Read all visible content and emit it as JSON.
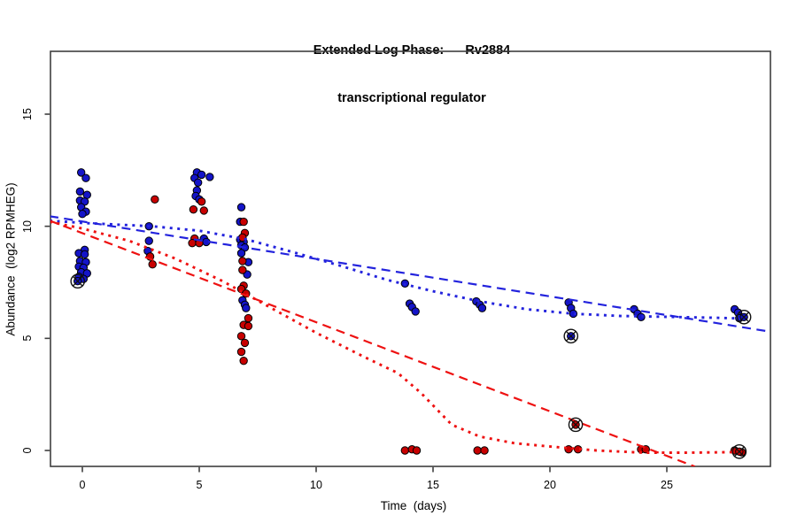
{
  "chart_data": {
    "type": "scatter",
    "title": "Extended Log Phase:      Rv2884",
    "subtitle": "transcriptional regulator",
    "xlabel": "Time  (days)",
    "ylabel": "Abundance  (log2 RPMHEG)",
    "x_ticks": [
      0,
      5,
      10,
      15,
      20,
      25
    ],
    "y_ticks": [
      0,
      5,
      10,
      15
    ],
    "xlim": [
      -1.4,
      29.5
    ],
    "ylim": [
      -0.75,
      17.8
    ],
    "grid": false,
    "legend": "none",
    "colors": {
      "blue_point": "#1414c8",
      "red_point": "#c80000",
      "blue_line": "#2323dd",
      "red_line": "#ee1111",
      "point_edge": "#000000",
      "flag_ring": "#111111",
      "box": "#3f3f3f",
      "text": "#000000",
      "background": "#ffffff"
    },
    "series": [
      {
        "name": "blue-points",
        "kind": "points",
        "marker": "dot",
        "color": "#1414c8",
        "data": [
          [
            -0.05,
            12.4
          ],
          [
            0.15,
            12.15
          ],
          [
            -0.1,
            11.55
          ],
          [
            0.2,
            11.4
          ],
          [
            -0.1,
            11.15
          ],
          [
            0.1,
            11.1
          ],
          [
            -0.05,
            10.85
          ],
          [
            0.15,
            10.65
          ],
          [
            0.0,
            10.55
          ],
          [
            0.1,
            8.95
          ],
          [
            -0.15,
            8.8
          ],
          [
            0.1,
            8.75
          ],
          [
            -0.1,
            8.45
          ],
          [
            0.15,
            8.4
          ],
          [
            -0.15,
            8.2
          ],
          [
            0.05,
            8.15
          ],
          [
            -0.05,
            7.95
          ],
          [
            0.2,
            7.9
          ],
          [
            -0.15,
            7.75
          ],
          [
            0.05,
            7.65
          ],
          [
            2.85,
            10.0
          ],
          [
            2.85,
            9.35
          ],
          [
            2.8,
            8.9
          ],
          [
            4.9,
            12.4
          ],
          [
            5.1,
            12.3
          ],
          [
            4.8,
            12.15
          ],
          [
            5.45,
            12.2
          ],
          [
            4.95,
            11.95
          ],
          [
            4.9,
            11.6
          ],
          [
            4.85,
            11.35
          ],
          [
            5.0,
            11.2
          ],
          [
            5.2,
            9.45
          ],
          [
            5.3,
            9.3
          ],
          [
            6.8,
            10.85
          ],
          [
            6.75,
            10.2
          ],
          [
            6.75,
            9.4
          ],
          [
            6.9,
            9.3
          ],
          [
            6.8,
            9.15
          ],
          [
            6.95,
            9.05
          ],
          [
            6.8,
            8.8
          ],
          [
            7.1,
            8.4
          ],
          [
            7.05,
            7.85
          ],
          [
            6.85,
            6.7
          ],
          [
            6.95,
            6.5
          ],
          [
            7.0,
            6.35
          ],
          [
            13.8,
            7.45
          ],
          [
            14.0,
            6.55
          ],
          [
            14.1,
            6.4
          ],
          [
            14.25,
            6.2
          ],
          [
            16.85,
            6.65
          ],
          [
            17.0,
            6.5
          ],
          [
            17.1,
            6.35
          ],
          [
            20.8,
            6.6
          ],
          [
            20.9,
            6.35
          ],
          [
            21.0,
            6.1
          ],
          [
            23.6,
            6.3
          ],
          [
            23.75,
            6.1
          ],
          [
            23.9,
            5.95
          ],
          [
            27.9,
            6.3
          ],
          [
            28.05,
            6.15
          ],
          [
            28.1,
            5.9
          ]
        ]
      },
      {
        "name": "red-points",
        "kind": "points",
        "marker": "dot",
        "color": "#c80000",
        "data": [
          [
            3.1,
            11.2
          ],
          [
            2.9,
            8.65
          ],
          [
            3.0,
            8.3
          ],
          [
            5.1,
            11.1
          ],
          [
            4.75,
            10.75
          ],
          [
            5.2,
            10.7
          ],
          [
            4.8,
            9.45
          ],
          [
            4.7,
            9.25
          ],
          [
            5.0,
            9.25
          ],
          [
            6.9,
            10.2
          ],
          [
            6.95,
            9.7
          ],
          [
            6.85,
            9.5
          ],
          [
            6.85,
            8.45
          ],
          [
            6.85,
            8.05
          ],
          [
            6.9,
            7.35
          ],
          [
            6.8,
            7.2
          ],
          [
            7.0,
            7.0
          ],
          [
            7.1,
            5.9
          ],
          [
            6.9,
            5.6
          ],
          [
            7.1,
            5.55
          ],
          [
            6.8,
            5.1
          ],
          [
            6.95,
            4.8
          ],
          [
            6.8,
            4.4
          ],
          [
            6.9,
            4.0
          ],
          [
            13.8,
            0.0
          ],
          [
            14.1,
            0.05
          ],
          [
            14.3,
            0.0
          ],
          [
            16.9,
            0.0
          ],
          [
            17.2,
            0.0
          ],
          [
            20.8,
            0.05
          ],
          [
            21.2,
            0.05
          ],
          [
            23.9,
            0.05
          ],
          [
            24.1,
            0.05
          ],
          [
            27.9,
            0.0
          ],
          [
            28.2,
            -0.08
          ]
        ]
      },
      {
        "name": "blue-flagged-points",
        "kind": "points",
        "marker": "circled-dot",
        "color": "#1414c8",
        "data": [
          [
            -0.2,
            7.55
          ],
          [
            20.9,
            5.1
          ],
          [
            28.3,
            5.95
          ]
        ]
      },
      {
        "name": "red-flagged-points",
        "kind": "points",
        "marker": "circled-dot",
        "color": "#c80000",
        "data": [
          [
            21.1,
            1.15
          ],
          [
            28.1,
            -0.05
          ]
        ]
      },
      {
        "name": "blue-linear-fit",
        "kind": "line",
        "style": "longdash",
        "color": "#2323dd",
        "data": [
          [
            -1.4,
            10.45
          ],
          [
            29.4,
            5.3
          ]
        ]
      },
      {
        "name": "blue-loess-fit",
        "kind": "line",
        "style": "dotted",
        "color": "#2323dd",
        "data": [
          [
            -1.4,
            10.25
          ],
          [
            0,
            10.15
          ],
          [
            2,
            10.05
          ],
          [
            3,
            10.0
          ],
          [
            5,
            9.8
          ],
          [
            7,
            9.42
          ],
          [
            9,
            8.85
          ],
          [
            11,
            8.25
          ],
          [
            13,
            7.62
          ],
          [
            15,
            7.1
          ],
          [
            17,
            6.65
          ],
          [
            19,
            6.3
          ],
          [
            21,
            6.1
          ],
          [
            23,
            6.0
          ],
          [
            25,
            5.96
          ],
          [
            27,
            5.92
          ],
          [
            28.4,
            5.88
          ]
        ]
      },
      {
        "name": "red-linear-fit",
        "kind": "line",
        "style": "longdash",
        "color": "#ee1111",
        "data": [
          [
            -1.4,
            10.25
          ],
          [
            26.2,
            -0.72
          ]
        ]
      },
      {
        "name": "red-loess-fit",
        "kind": "line",
        "style": "dotted",
        "color": "#ee1111",
        "data": [
          [
            -1.4,
            10.2
          ],
          [
            0,
            9.9
          ],
          [
            2,
            9.35
          ],
          [
            4,
            8.55
          ],
          [
            6,
            7.55
          ],
          [
            8,
            6.4
          ],
          [
            10,
            5.25
          ],
          [
            12,
            4.2
          ],
          [
            13.5,
            3.45
          ],
          [
            14.5,
            2.55
          ],
          [
            15.8,
            1.15
          ],
          [
            17,
            0.62
          ],
          [
            18.5,
            0.32
          ],
          [
            20.3,
            0.15
          ],
          [
            22,
            0.0
          ],
          [
            24,
            -0.1
          ],
          [
            26,
            -0.1
          ],
          [
            28.1,
            -0.07
          ]
        ]
      }
    ]
  }
}
